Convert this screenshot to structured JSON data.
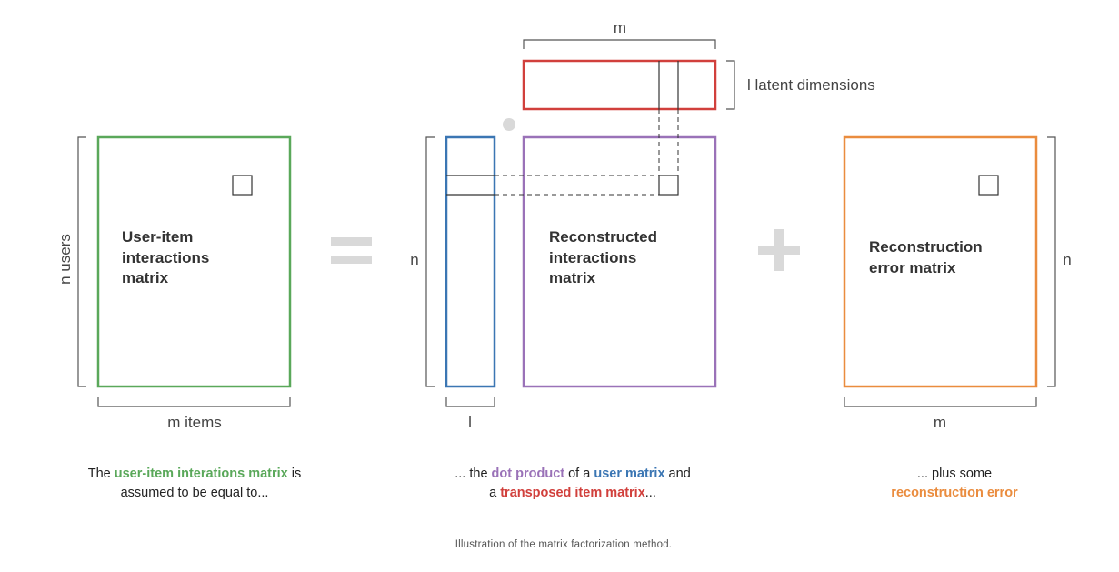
{
  "colors": {
    "green": "#5aa85a",
    "blue": "#3b76b3",
    "red": "#d1403c",
    "purple": "#9a72b8",
    "orange": "#ea8c3e",
    "gray_symbol": "#d9d9d9",
    "bracket": "#555555"
  },
  "matrices": {
    "interactions": {
      "label_lines": [
        "User-item",
        "interactions",
        "matrix"
      ]
    },
    "reconstructed": {
      "label_lines": [
        "Reconstructed",
        "interactions",
        "matrix"
      ]
    },
    "error": {
      "label_lines": [
        "Reconstruction",
        "error matrix"
      ]
    }
  },
  "operators": {
    "equals": "=",
    "plus": "+"
  },
  "dimensions": {
    "n_users": "n users",
    "m_items": "m items",
    "n_left": "n",
    "l_width": "l",
    "m_top": "m",
    "l_latent": "l latent dimensions",
    "n_right": "n",
    "m_bottom": "m"
  },
  "captions": {
    "left": {
      "pre": "The ",
      "highlight": "user-item interations matrix",
      "post": " is",
      "line2": "assumed to be equal to..."
    },
    "middle": {
      "pre": "... the ",
      "h1": "dot product",
      "mid1": " of a ",
      "h2": "user matrix",
      "post1": " and",
      "line2_pre": "a ",
      "h3": "transposed item matrix",
      "line2_post": "..."
    },
    "right": {
      "line1": "... plus some",
      "highlight": "reconstruction error"
    }
  },
  "figure_caption": "Illustration of the matrix factorization method."
}
